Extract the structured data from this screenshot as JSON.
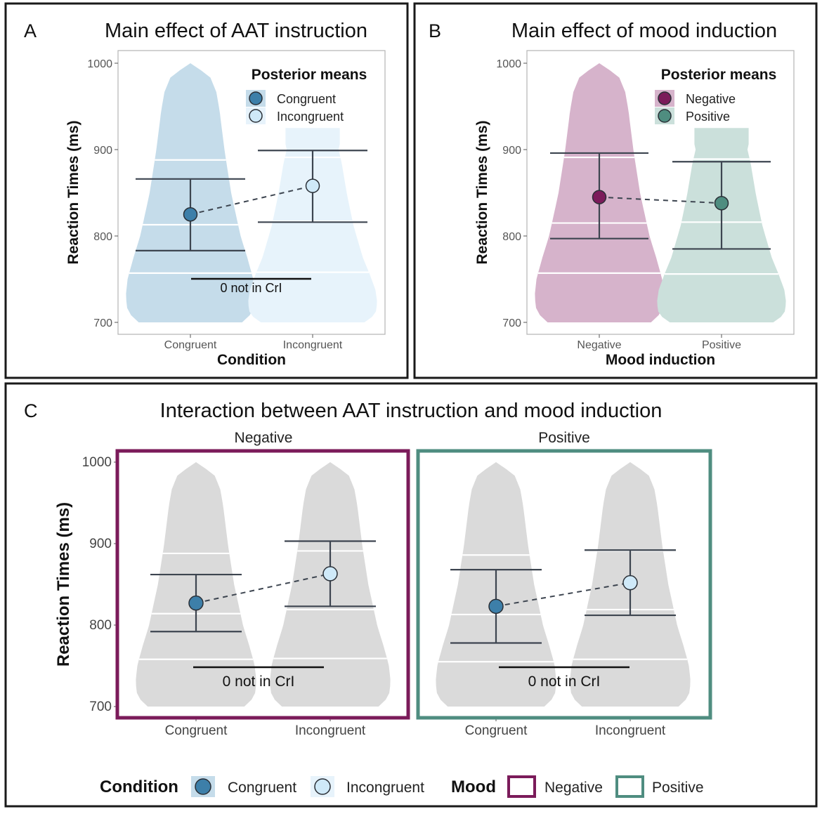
{
  "colors": {
    "congruent": "#3d7fa9",
    "incongruent": "#cfe9f8",
    "congruent_violin": "#c5dcea",
    "incongruent_violin": "#e7f3fb",
    "negative": "#7b1b5a",
    "positive": "#4f8d80",
    "negative_violin": "#d6b3cb",
    "positive_violin": "#cbe0db",
    "grey_violin": "#dadada"
  },
  "panel_a": {
    "letter": "A",
    "title": "Main effect of AAT instruction",
    "legend_title": "Posterior means",
    "legend_items": [
      "Congruent",
      "Incongruent"
    ],
    "annotation": "0 not in CrI"
  },
  "panel_b": {
    "letter": "B",
    "title": "Main effect of mood induction",
    "legend_title": "Posterior means",
    "legend_items": [
      "Negative",
      "Positive"
    ]
  },
  "panel_c": {
    "letter": "C",
    "title": "Interaction between AAT instruction and mood induction",
    "facets": [
      "Negative",
      "Positive"
    ],
    "annotation": "0 not in CrI"
  },
  "bottom_legend": {
    "condition_title": "Condition",
    "condition_items": [
      "Congruent",
      "Incongruent"
    ],
    "mood_title": "Mood",
    "mood_items": [
      "Negative",
      "Positive"
    ]
  },
  "chart_data": [
    {
      "id": "A",
      "type": "violin",
      "title": "Main effect of AAT instruction",
      "xlabel": "Condition",
      "ylabel": "Reaction Times (ms)",
      "ylim": [
        700,
        1000
      ],
      "yticks": [
        "700",
        "800",
        "900",
        "1000"
      ],
      "categories": [
        "Congruent",
        "Incongruent"
      ],
      "means": [
        825,
        858
      ],
      "ci_lower": [
        783,
        816
      ],
      "ci_upper": [
        866,
        899
      ],
      "violin_range": [
        [
          700,
          1000
        ],
        [
          700,
          925
        ]
      ],
      "quantile_lines": [
        [
          757,
          813,
          888
        ],
        [
          758,
          817,
          891
        ]
      ],
      "annotation": "0 not in CrI"
    },
    {
      "id": "B",
      "type": "violin",
      "title": "Main effect of mood induction",
      "xlabel": "Mood induction",
      "ylabel": "Reaction Times (ms)",
      "ylim": [
        700,
        1000
      ],
      "yticks": [
        "700",
        "800",
        "900",
        "1000"
      ],
      "categories": [
        "Negative",
        "Positive"
      ],
      "means": [
        845,
        838
      ],
      "ci_lower": [
        797,
        785
      ],
      "ci_upper": [
        896,
        886
      ],
      "violin_range": [
        [
          700,
          1000
        ],
        [
          700,
          925
        ]
      ],
      "quantile_lines": [
        [
          757,
          815,
          891
        ],
        [
          756,
          816,
          889
        ]
      ]
    },
    {
      "id": "C",
      "type": "violin",
      "title": "Interaction between AAT instruction and mood induction",
      "ylabel": "Reaction Times (ms)",
      "ylim": [
        700,
        1000
      ],
      "yticks": [
        "700",
        "800",
        "900",
        "1000"
      ],
      "facets": [
        {
          "name": "Negative",
          "categories": [
            "Congruent",
            "Incongruent"
          ],
          "means": [
            827,
            863
          ],
          "ci_lower": [
            792,
            823
          ],
          "ci_upper": [
            862,
            903
          ],
          "violin_range": [
            [
              700,
              1000
            ],
            [
              700,
              1000
            ]
          ],
          "quantile_lines": [
            [
              758,
              814,
              888
            ],
            [
              759,
              819,
              891
            ]
          ],
          "annotation": "0 not in CrI"
        },
        {
          "name": "Positive",
          "categories": [
            "Congruent",
            "Incongruent"
          ],
          "means": [
            823,
            852
          ],
          "ci_lower": [
            778,
            812
          ],
          "ci_upper": [
            868,
            892
          ],
          "violin_range": [
            [
              700,
              1000
            ],
            [
              700,
              1000
            ]
          ],
          "quantile_lines": [
            [
              755,
              813,
              886
            ],
            [
              758,
              819,
              891
            ]
          ],
          "annotation": "0 not in CrI"
        }
      ]
    }
  ]
}
